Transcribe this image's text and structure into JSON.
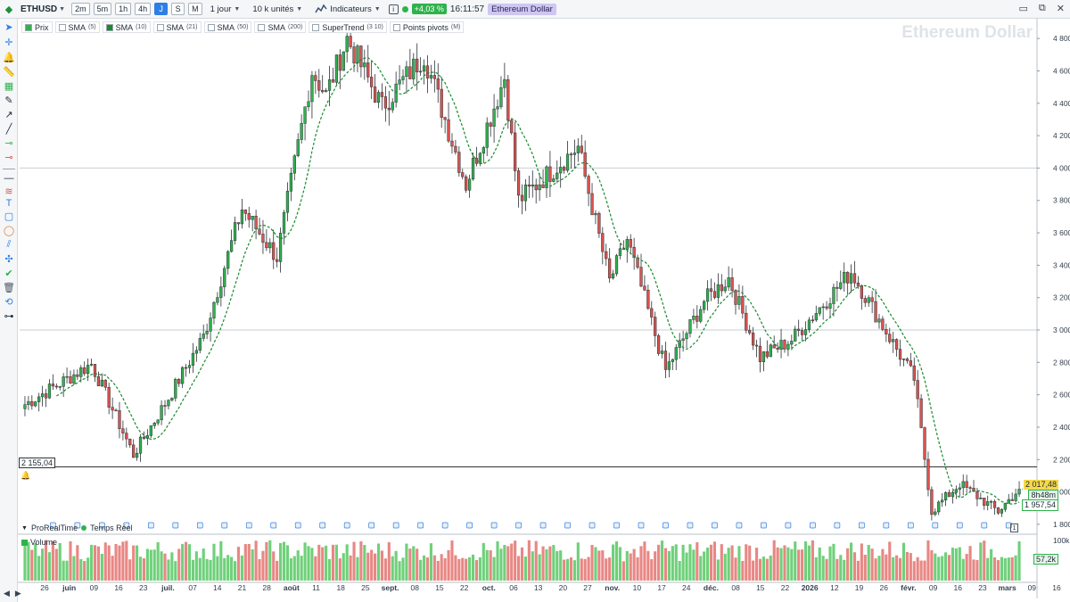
{
  "toolbar": {
    "symbol": "ETHUSD",
    "timeframes": [
      "2m",
      "5m",
      "1h",
      "4h",
      "J",
      "S",
      "M"
    ],
    "active_timeframe": "J",
    "period": "1 jour",
    "units": "10 k unités",
    "indicators": "Indicateurs",
    "change": "+4,03 %",
    "time": "16:11:57",
    "instrument_name": "Ethereum Dollar"
  },
  "legend": {
    "items": [
      {
        "label": "Prix",
        "param": "",
        "color": "#2fb24c"
      },
      {
        "label": "SMA",
        "param": "(5)",
        "color": ""
      },
      {
        "label": "SMA",
        "param": "(10)",
        "color": "#1a8a2e"
      },
      {
        "label": "SMA",
        "param": "(21)",
        "color": ""
      },
      {
        "label": "SMA",
        "param": "(50)",
        "color": ""
      },
      {
        "label": "SMA",
        "param": "(200)",
        "color": ""
      },
      {
        "label": "SuperTrend",
        "param": "(3 10)",
        "color": ""
      },
      {
        "label": "Points pivots",
        "param": "(M)",
        "color": ""
      }
    ]
  },
  "watermark": "Ethereum Dollar",
  "price_axis": {
    "ticks": [
      4800,
      4600,
      4400,
      4200,
      4000,
      3800,
      3600,
      3400,
      3200,
      3000,
      2800,
      2600,
      2400,
      2200,
      2000,
      1800
    ],
    "labels": [
      "4 800",
      "4 600",
      "4 400",
      "4 200",
      "4 000",
      "3 800",
      "3 600",
      "3 400",
      "3 200",
      "3 000",
      "2 800",
      "2 600",
      "2 400",
      "2 200",
      "2 000",
      "1 800"
    ],
    "last_price": "2 017,48",
    "countdown": "8h48m",
    "low_price": "1 957,54",
    "level_line": "2 155,04"
  },
  "bottom_panel": {
    "source": "ProRealTime",
    "feed": "Temps Réel",
    "volume_label": "Volume",
    "volume_axis_top": "100k",
    "volume_last": "57,2k"
  },
  "date_axis": {
    "labels": [
      "26",
      "juin",
      "09",
      "16",
      "23",
      "juil.",
      "07",
      "14",
      "21",
      "28",
      "août",
      "11",
      "18",
      "25",
      "sept.",
      "08",
      "15",
      "22",
      "oct.",
      "06",
      "13",
      "20",
      "27",
      "nov.",
      "10",
      "17",
      "24",
      "déc.",
      "08",
      "15",
      "22",
      "2026",
      "12",
      "19",
      "26",
      "févr.",
      "09",
      "16",
      "23",
      "mars",
      "09",
      "16"
    ]
  },
  "colors": {
    "up": "#2fb24c",
    "down": "#d9534f",
    "sma": "#1a8a2e",
    "accent": "#2e7ee6"
  },
  "chart_data": {
    "type": "candlestick",
    "y_unit": "USD",
    "ylim": [
      1750,
      4900
    ],
    "x_start": "2025-05-22",
    "anchors": [
      {
        "date": "2025-05-22",
        "close": 2540
      },
      {
        "date": "2025-06-10",
        "close": 2790
      },
      {
        "date": "2025-06-22",
        "close": 2230
      },
      {
        "date": "2025-07-02",
        "close": 2580
      },
      {
        "date": "2025-07-12",
        "close": 2960
      },
      {
        "date": "2025-07-23",
        "close": 3750
      },
      {
        "date": "2025-08-02",
        "close": 3450
      },
      {
        "date": "2025-08-12",
        "close": 4600
      },
      {
        "date": "2025-08-16",
        "close": 4450
      },
      {
        "date": "2025-08-22",
        "close": 4800
      },
      {
        "date": "2025-09-01",
        "close": 4380
      },
      {
        "date": "2025-09-13",
        "close": 4700
      },
      {
        "date": "2025-09-25",
        "close": 3900
      },
      {
        "date": "2025-10-06",
        "close": 4560
      },
      {
        "date": "2025-10-10",
        "close": 3800
      },
      {
        "date": "2025-10-27",
        "close": 4130
      },
      {
        "date": "2025-11-05",
        "close": 3300
      },
      {
        "date": "2025-11-10",
        "close": 3560
      },
      {
        "date": "2025-11-21",
        "close": 2750
      },
      {
        "date": "2025-12-02",
        "close": 3180
      },
      {
        "date": "2025-12-09",
        "close": 3320
      },
      {
        "date": "2025-12-18",
        "close": 2830
      },
      {
        "date": "2025-12-27",
        "close": 2940
      },
      {
        "date": "2026-01-13",
        "close": 3360
      },
      {
        "date": "2026-01-20",
        "close": 3100
      },
      {
        "date": "2026-01-31",
        "close": 2700
      },
      {
        "date": "2026-02-05",
        "close": 1880
      },
      {
        "date": "2026-02-13",
        "close": 2050
      },
      {
        "date": "2026-02-24",
        "close": 1880
      },
      {
        "date": "2026-03-02",
        "close": 2017.48
      }
    ],
    "sma_period": 10,
    "last_close": 2017.48,
    "session_low": 1957.54,
    "horizontal_level": 2155.04
  }
}
